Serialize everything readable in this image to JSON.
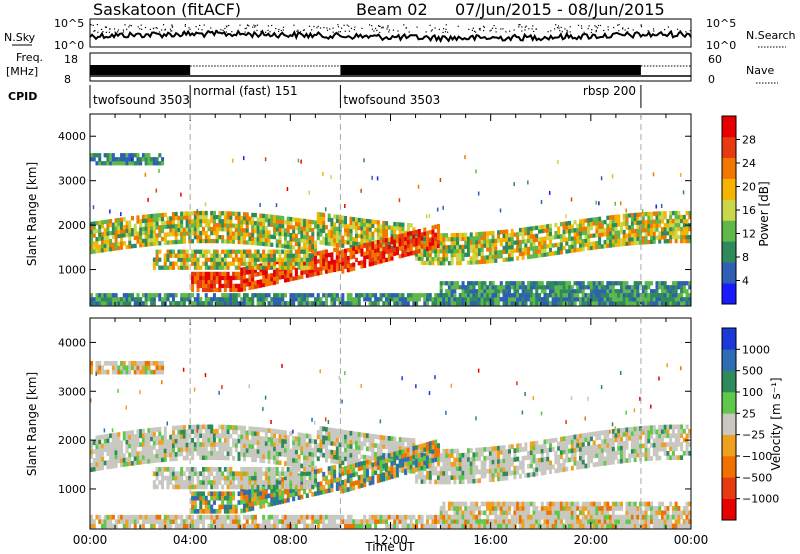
{
  "header": {
    "station": "Saskatoon (fitACF)",
    "beam": "Beam 02",
    "date_range": "07/Jun/2015 - 08/Jun/2015"
  },
  "noise_panel": {
    "left_label": "N.Sky",
    "left_ticks": [
      "10^5",
      "10^0"
    ],
    "right_ticks": [
      "10^5",
      "10^0"
    ],
    "right_label": "N.Search"
  },
  "freq_panel": {
    "label_top": "Freq.",
    "label_unit": "[MHz]",
    "left_ticks": [
      "18",
      "8"
    ],
    "right_ticks": [
      "60",
      "0"
    ],
    "right_label": "Nave"
  },
  "cpid": {
    "label": "CPID",
    "modes": [
      {
        "name": "twofsound 3503",
        "start_hour": 0,
        "end_hour": 4
      },
      {
        "name": "normal (fast) 151",
        "start_hour": 4,
        "end_hour": 10
      },
      {
        "name": "twofsound 3503",
        "start_hour": 10,
        "end_hour": 22
      },
      {
        "name": "rbsp 200",
        "start_hour": 22,
        "end_hour": 24
      }
    ]
  },
  "chart_data": [
    {
      "type": "heatmap",
      "name": "power",
      "ylabel": "Slant Range [km]",
      "ylim": [
        180,
        4500
      ],
      "yticks": [
        "1000",
        "2000",
        "3000",
        "4000"
      ],
      "colorbar": {
        "label": "Power [dB]",
        "ticks": [
          "4",
          "8",
          "12",
          "16",
          "20",
          "24",
          "28"
        ],
        "colors": [
          "#1a1aff",
          "#2e5fb5",
          "#2e8a5a",
          "#5fb84a",
          "#c8d84a",
          "#f5b400",
          "#f07800",
          "#e83a10",
          "#e80000"
        ]
      },
      "bands": [
        {
          "hours": [
            0,
            24
          ],
          "range_km": [
            1300,
            2100
          ],
          "level": "mid"
        },
        {
          "hours": [
            4,
            6
          ],
          "range_km": [
            500,
            900
          ],
          "level": "high"
        },
        {
          "hours": [
            6,
            10
          ],
          "range_km": [
            500,
            1300
          ],
          "level": "high"
        },
        {
          "hours": [
            10,
            14
          ],
          "range_km": [
            900,
            2200
          ],
          "level": "high"
        },
        {
          "hours": [
            14,
            24
          ],
          "range_km": [
            200,
            700
          ],
          "level": "low"
        },
        {
          "hours": [
            0,
            3
          ],
          "range_km": [
            3300,
            3600
          ],
          "level": "low"
        }
      ]
    },
    {
      "type": "heatmap",
      "name": "velocity",
      "ylabel": "Slant Range [km]",
      "ylim": [
        180,
        4500
      ],
      "yticks": [
        "1000",
        "2000",
        "3000",
        "4000"
      ],
      "colorbar": {
        "label": "Velocity [m s⁻¹]",
        "ticks": [
          "1000",
          "500",
          "100",
          "25",
          "−25",
          "−100",
          "−500",
          "−1000"
        ],
        "colors": [
          "#1a3ad8",
          "#2e6cb5",
          "#2e8a5a",
          "#5fc84a",
          "#c8c8c0",
          "#f0a020",
          "#f07000",
          "#e83a10",
          "#e80000"
        ]
      },
      "xlabel": "Time UT",
      "xticks": [
        "00:00",
        "04:00",
        "08:00",
        "12:00",
        "16:00",
        "20:00",
        "00:00"
      ]
    }
  ]
}
